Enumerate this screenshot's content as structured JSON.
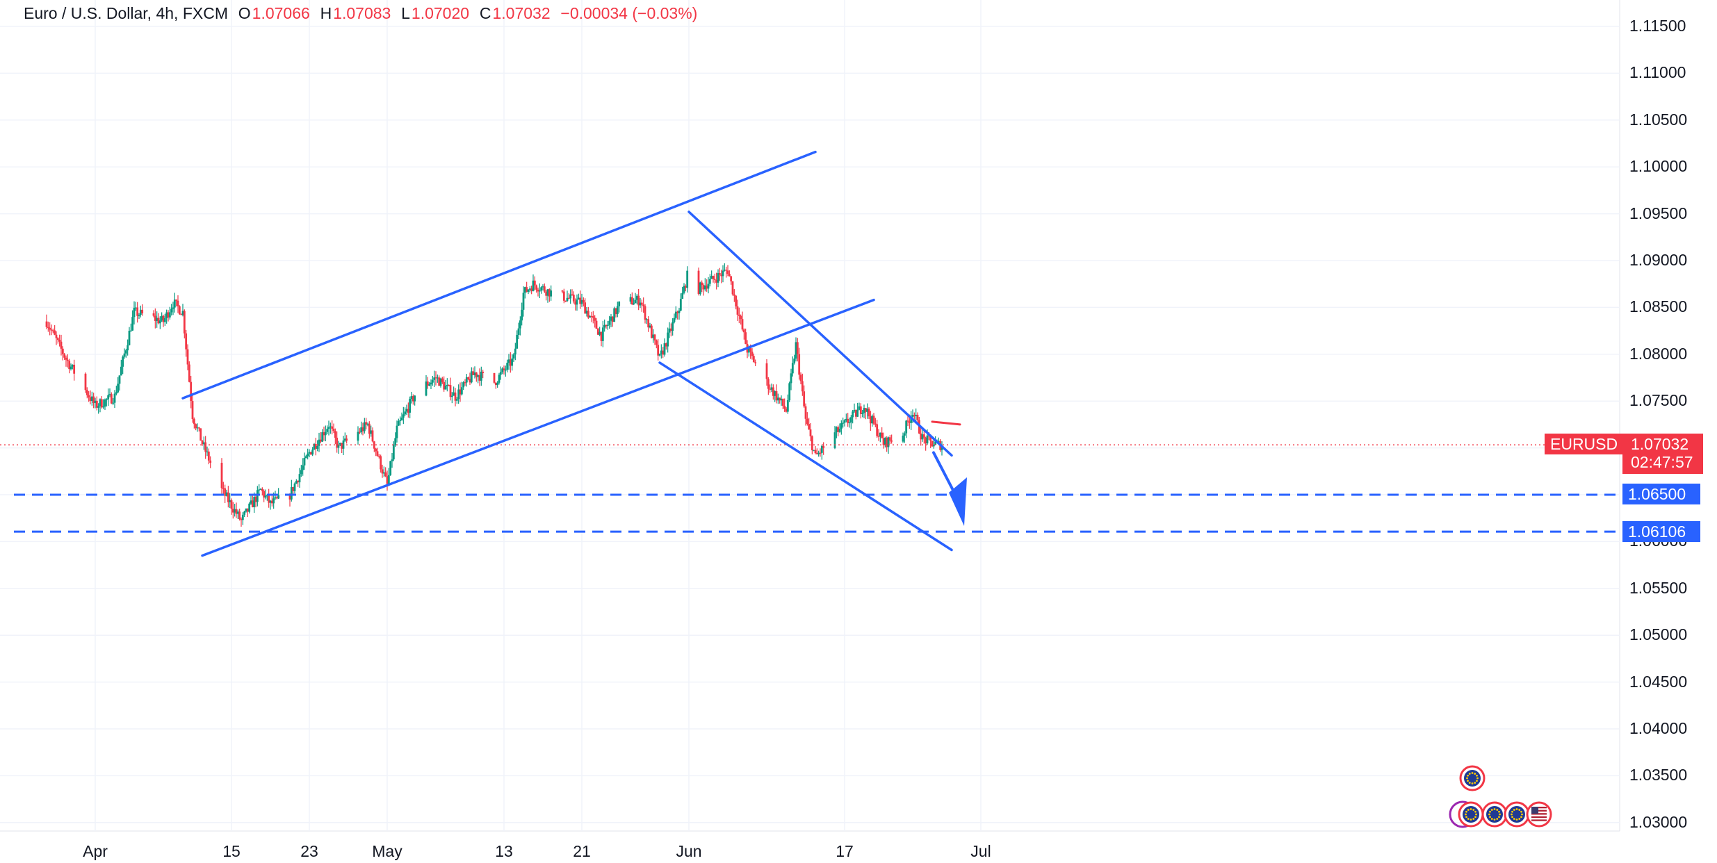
{
  "header": {
    "symbol_desc": "Euro / U.S. Dollar, 4h, FXCM",
    "o_label": "O",
    "o_value": "1.07066",
    "h_label": "H",
    "h_value": "1.07083",
    "l_label": "L",
    "l_value": "1.07020",
    "c_label": "C",
    "c_value": "1.07032",
    "change": "−0.00034 (−0.03%)"
  },
  "price_tag": {
    "symbol": "EURUSD",
    "price": "1.07032",
    "countdown": "02:47:57"
  },
  "level_tags": [
    "1.06500",
    "1.06106"
  ],
  "colors": {
    "up": "#089981",
    "down": "#f23645",
    "drawing": "#2962ff",
    "grid": "#f0f3fa",
    "text": "#131722"
  },
  "icons": [
    "eu-flag-icon",
    "eu-flag-icon",
    "eu-flag-icon",
    "eu-flag-icon",
    "us-flag-icon"
  ],
  "chart_data": {
    "type": "candlestick",
    "title": "Euro / U.S. Dollar, 4h, FXCM",
    "timeframe": "4h",
    "y_range": [
      1.0275,
      1.1165
    ],
    "y_ticks": [
      "1.11500",
      "1.11000",
      "1.10500",
      "1.10000",
      "1.09500",
      "1.09000",
      "1.08500",
      "1.08000",
      "1.07500",
      "1.07000",
      "1.06500",
      "1.06000",
      "1.05500",
      "1.05000",
      "1.04500",
      "1.04000",
      "1.03500",
      "1.03000"
    ],
    "x_ticks": [
      "Apr",
      "15",
      "23",
      "May",
      "13",
      "21",
      "Jun",
      "17",
      "Jul"
    ],
    "x_tick_dates": [
      "2024-04-01",
      "2024-04-15",
      "2024-04-23",
      "2024-05-01",
      "2024-05-13",
      "2024-05-21",
      "2024-06-01",
      "2024-06-17",
      "2024-07-01"
    ],
    "last_price": 1.07032,
    "horizontal_levels": [
      1.065,
      1.06106
    ],
    "trendlines": [
      {
        "name": "upper-channel",
        "from": {
          "date": "2024-04-10",
          "price": 1.0753
        },
        "to": {
          "date": "2024-06-14",
          "price": 1.1016
        }
      },
      {
        "name": "lower-channel",
        "from": {
          "date": "2024-04-12",
          "price": 1.0585
        },
        "to": {
          "date": "2024-06-20",
          "price": 1.0858
        }
      },
      {
        "name": "falling-upper",
        "from": {
          "date": "2024-06-01",
          "price": 1.0952
        },
        "to": {
          "date": "2024-06-28",
          "price": 1.0692
        }
      },
      {
        "name": "falling-lower",
        "from": {
          "date": "2024-05-29",
          "price": 1.0791
        },
        "to": {
          "date": "2024-06-28",
          "price": 1.0591
        }
      }
    ],
    "arrow": {
      "from": {
        "date": "2024-06-27",
        "price": 1.0695
      },
      "to": {
        "date": "2024-06-28",
        "price": 1.0627
      }
    },
    "red_mark": {
      "from": {
        "date": "2024-06-26",
        "price": 1.0728
      },
      "to": {
        "date": "2024-06-27",
        "price": 1.0725
      }
    },
    "path": [
      [
        "2024-03-27",
        1.0835
      ],
      [
        "2024-03-29",
        1.0795
      ],
      [
        "2024-04-01",
        1.0745
      ],
      [
        "2024-04-03",
        1.0755
      ],
      [
        "2024-04-05",
        1.0845
      ],
      [
        "2024-04-08",
        1.0835
      ],
      [
        "2024-04-09",
        1.0855
      ],
      [
        "2024-04-10",
        1.0845
      ],
      [
        "2024-04-11",
        1.0735
      ],
      [
        "2024-04-12",
        1.0705
      ],
      [
        "2024-04-14",
        1.0655
      ],
      [
        "2024-04-16",
        1.0622
      ],
      [
        "2024-04-18",
        1.0655
      ],
      [
        "2024-04-19",
        1.064
      ],
      [
        "2024-04-21",
        1.065
      ],
      [
        "2024-04-23",
        1.0695
      ],
      [
        "2024-04-25",
        1.0725
      ],
      [
        "2024-04-26",
        1.07
      ],
      [
        "2024-04-29",
        1.0725
      ],
      [
        "2024-05-01",
        1.066
      ],
      [
        "2024-05-02",
        1.072
      ],
      [
        "2024-05-04",
        1.076
      ],
      [
        "2024-05-06",
        1.0775
      ],
      [
        "2024-05-08",
        1.0755
      ],
      [
        "2024-05-10",
        1.078
      ],
      [
        "2024-05-12",
        1.077
      ],
      [
        "2024-05-14",
        1.0795
      ],
      [
        "2024-05-15",
        1.0865
      ],
      [
        "2024-05-16",
        1.0875
      ],
      [
        "2024-05-18",
        1.0865
      ],
      [
        "2024-05-21",
        1.0855
      ],
      [
        "2024-05-23",
        1.082
      ],
      [
        "2024-05-25",
        1.0855
      ],
      [
        "2024-05-27",
        1.0858
      ],
      [
        "2024-05-29",
        1.0795
      ],
      [
        "2024-05-31",
        1.085
      ],
      [
        "2024-06-01",
        1.089
      ],
      [
        "2024-06-02",
        1.087
      ],
      [
        "2024-06-05",
        1.089
      ],
      [
        "2024-06-07",
        1.0805
      ],
      [
        "2024-06-09",
        1.077
      ],
      [
        "2024-06-11",
        1.074
      ],
      [
        "2024-06-12",
        1.081
      ],
      [
        "2024-06-13",
        1.073
      ],
      [
        "2024-06-14",
        1.069
      ],
      [
        "2024-06-16",
        1.0715
      ],
      [
        "2024-06-18",
        1.0735
      ],
      [
        "2024-06-19",
        1.0745
      ],
      [
        "2024-06-21",
        1.0705
      ],
      [
        "2024-06-23",
        1.0715
      ],
      [
        "2024-06-24",
        1.074
      ],
      [
        "2024-06-25",
        1.071
      ],
      [
        "2024-06-26",
        1.0705
      ],
      [
        "2024-06-27",
        1.0703
      ]
    ]
  }
}
